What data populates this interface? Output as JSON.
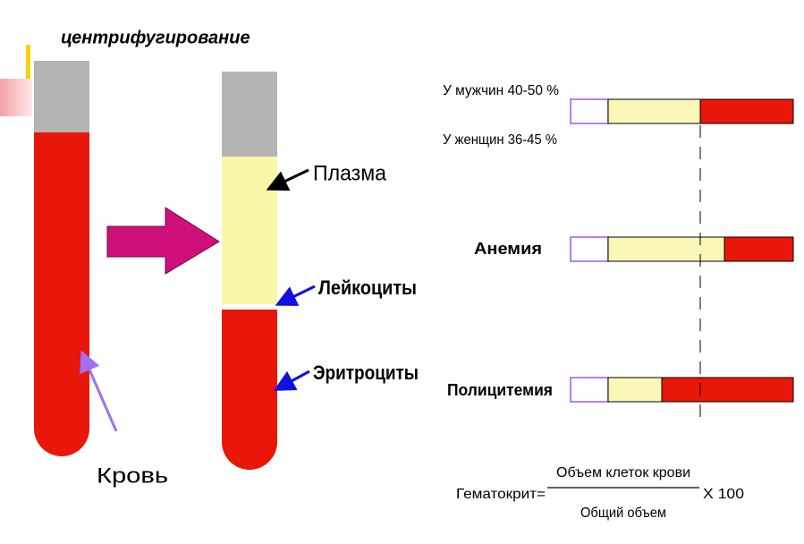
{
  "title": "центрифугирование",
  "tube_labels": {
    "plasma": "Плазма",
    "leukocytes": "Лейкоциты",
    "erythrocytes": "Эритроциты",
    "blood": "Кровь"
  },
  "norms": {
    "men": "У мужчин 40-50 %",
    "women": "У женщин 36-45 %"
  },
  "rows": {
    "anemia": "Анемия",
    "polycythemia": "Полицитемия"
  },
  "formula": {
    "left": "Гематокрит=",
    "numerator": "Объем клеток крови",
    "denominator": "Общий объем",
    "factor": "X 100"
  }
}
